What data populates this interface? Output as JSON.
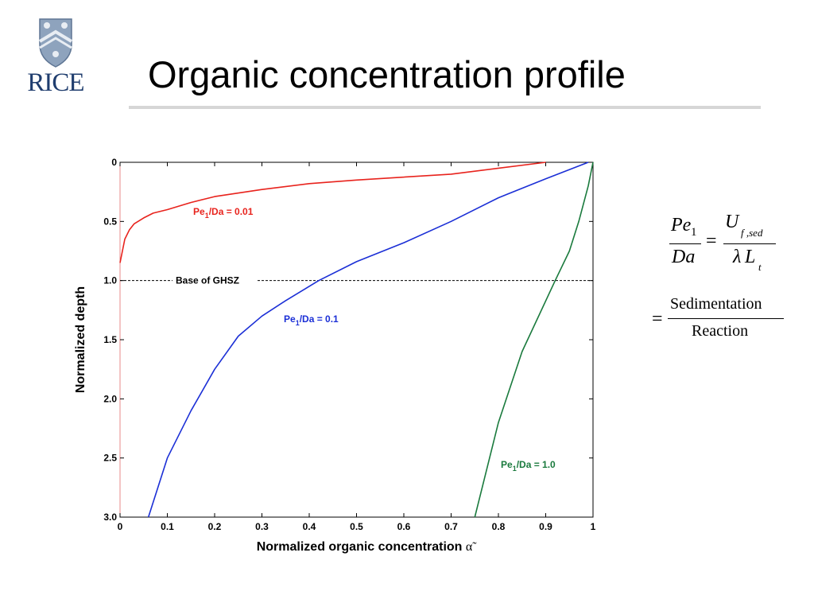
{
  "slide": {
    "title": "Organic concentration profile",
    "logo_text": "RICE"
  },
  "chart_data": {
    "type": "line",
    "xlabel": "Normalized organic concentration",
    "xlabel_symbol": "α̃",
    "ylabel": "Normalized depth",
    "xlim": [
      0,
      1
    ],
    "ylim": [
      3.0,
      0
    ],
    "y_inverted": true,
    "x_ticks": [
      "0",
      "0.1",
      "0.2",
      "0.3",
      "0.4",
      "0.5",
      "0.6",
      "0.7",
      "0.8",
      "0.9",
      "1"
    ],
    "y_ticks": [
      "0",
      "0.5",
      "1.0",
      "1.5",
      "2.0",
      "2.5",
      "3.0"
    ],
    "grid": false,
    "series": [
      {
        "name": "Pe1/Da = 0.01",
        "label_main": "Pe",
        "label_sub": "1",
        "label_rest": "/Da = 0.01",
        "color": "#e8231d",
        "points": [
          [
            0.9,
            0.0
          ],
          [
            0.7,
            0.1
          ],
          [
            0.5,
            0.15
          ],
          [
            0.4,
            0.18
          ],
          [
            0.3,
            0.23
          ],
          [
            0.2,
            0.29
          ],
          [
            0.15,
            0.34
          ],
          [
            0.1,
            0.4
          ],
          [
            0.07,
            0.43
          ],
          [
            0.05,
            0.47
          ],
          [
            0.03,
            0.52
          ],
          [
            0.02,
            0.57
          ],
          [
            0.01,
            0.65
          ],
          [
            0.005,
            0.75
          ],
          [
            0.0,
            0.85
          ]
        ]
      },
      {
        "name": "Pe1/Da = 0.1",
        "label_main": "Pe",
        "label_sub": "1",
        "label_rest": "/Da = 0.1",
        "color": "#1b2fd6",
        "points": [
          [
            0.99,
            0.0
          ],
          [
            0.9,
            0.14
          ],
          [
            0.8,
            0.3
          ],
          [
            0.7,
            0.5
          ],
          [
            0.6,
            0.68
          ],
          [
            0.5,
            0.84
          ],
          [
            0.42,
            1.0
          ],
          [
            0.35,
            1.17
          ],
          [
            0.3,
            1.3
          ],
          [
            0.25,
            1.47
          ],
          [
            0.2,
            1.75
          ],
          [
            0.15,
            2.1
          ],
          [
            0.1,
            2.5
          ],
          [
            0.06,
            3.0
          ]
        ]
      },
      {
        "name": "Pe1/Da = 1.0",
        "label_main": "Pe",
        "label_sub": "1",
        "label_rest": "/Da = 1.0",
        "color": "#1a7a3d",
        "points": [
          [
            1.0,
            0.0
          ],
          [
            0.99,
            0.2
          ],
          [
            0.97,
            0.5
          ],
          [
            0.95,
            0.75
          ],
          [
            0.92,
            1.0
          ],
          [
            0.85,
            1.6
          ],
          [
            0.8,
            2.2
          ],
          [
            0.75,
            3.0
          ]
        ]
      }
    ],
    "reference_line": {
      "label": "Base of GHSZ",
      "y": 1.0
    }
  },
  "equation": {
    "lhs_num": "Pe",
    "lhs_num_sub": "1",
    "lhs_den": "Da",
    "eq1": "=",
    "rhs_num": "U",
    "rhs_num_sub": "f ,sed",
    "rhs_den_lambda": "λ",
    "rhs_den": "L",
    "rhs_den_sub": "t",
    "eq2": "=",
    "word_num": "Sedimentation",
    "word_den": "Reaction"
  }
}
